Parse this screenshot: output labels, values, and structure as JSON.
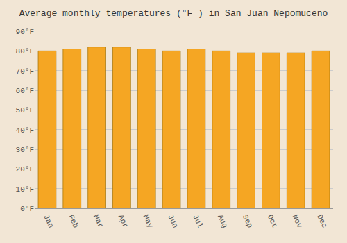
{
  "chart_data": {
    "type": "bar",
    "title": "Average monthly temperatures (°F ) in San Juan Nepomuceno",
    "categories": [
      "Jan",
      "Feb",
      "Mar",
      "Apr",
      "May",
      "Jun",
      "Jul",
      "Aug",
      "Sep",
      "Oct",
      "Nov",
      "Dec"
    ],
    "values": [
      80,
      81,
      82,
      82,
      81,
      80,
      81,
      80,
      79,
      79,
      79,
      80
    ],
    "color": "#F5A623",
    "ylim": [
      0,
      90
    ],
    "yticks": [
      {
        "value": 0,
        "label": "0°F"
      },
      {
        "value": 10,
        "label": "10°F"
      },
      {
        "value": 20,
        "label": "20°F"
      },
      {
        "value": 30,
        "label": "30°F"
      },
      {
        "value": 40,
        "label": "40°F"
      },
      {
        "value": 50,
        "label": "50°F"
      },
      {
        "value": 60,
        "label": "60°F"
      },
      {
        "value": 70,
        "label": "70°F"
      },
      {
        "value": 80,
        "label": "80°F"
      },
      {
        "value": 90,
        "label": "90°F"
      }
    ],
    "grid": true
  }
}
